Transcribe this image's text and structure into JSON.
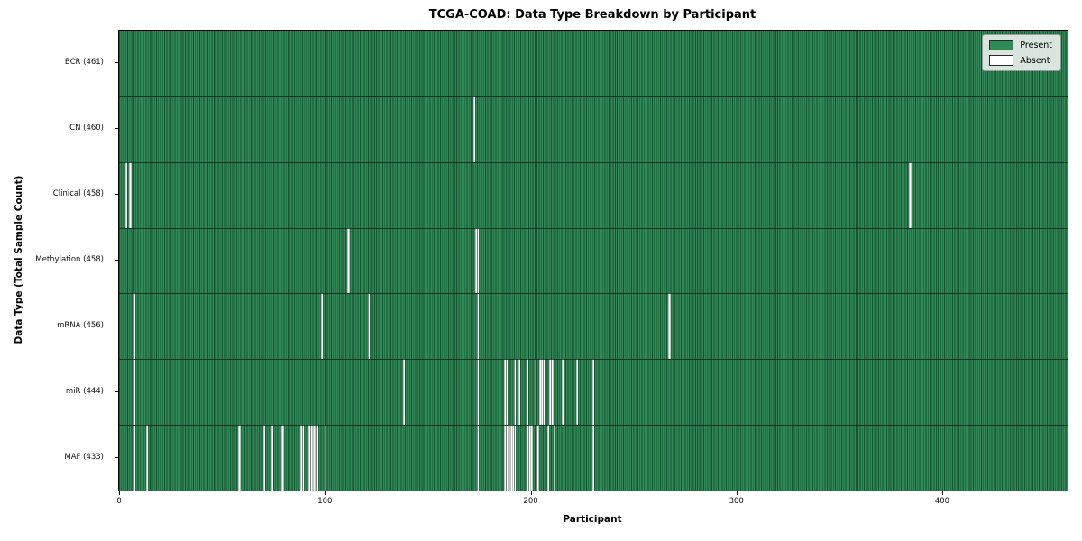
{
  "chart_data": {
    "type": "heatmap",
    "title": "TCGA-COAD: Data Type Breakdown by Participant",
    "xlabel": "Participant",
    "ylabel": "Data Type (Total Sample Count)",
    "n_participants": 461,
    "x_ticks": [
      0,
      100,
      200,
      300,
      400
    ],
    "legend": [
      {
        "label": "Present",
        "color": "#2e8b57"
      },
      {
        "label": "Absent",
        "color": "#ffffff"
      }
    ],
    "colors": {
      "present": "#2e8b57",
      "edge": "rgba(10,35,20,0.55)",
      "absent": "#ffffff"
    },
    "layout": {
      "grid": false,
      "legend_position": "upper right"
    },
    "rows": [
      {
        "label": "BCR (461)",
        "data_type": "BCR",
        "total": 461,
        "absent_participants": []
      },
      {
        "label": "CN (460)",
        "data_type": "CN",
        "total": 460,
        "absent_participants": [
          172
        ]
      },
      {
        "label": "Clinical (458)",
        "data_type": "Clinical",
        "total": 458,
        "absent_participants": [
          3,
          5,
          384
        ]
      },
      {
        "label": "Methylation (458)",
        "data_type": "Methylation",
        "total": 458,
        "absent_participants": [
          111,
          173,
          174
        ]
      },
      {
        "label": "mRNA (456)",
        "data_type": "mRNA",
        "total": 456,
        "absent_participants": [
          7,
          98,
          121,
          174,
          267
        ]
      },
      {
        "label": "miR (444)",
        "data_type": "miR",
        "total": 444,
        "absent_participants": [
          7,
          138,
          174,
          187,
          188,
          192,
          194,
          198,
          202,
          204,
          205,
          206,
          209,
          210,
          215,
          222,
          230
        ]
      },
      {
        "label": "MAF (433)",
        "data_type": "MAF",
        "total": 433,
        "absent_participants": [
          7,
          13,
          58,
          70,
          74,
          79,
          88,
          89,
          92,
          93,
          94,
          95,
          96,
          100,
          174,
          187,
          188,
          189,
          190,
          191,
          192,
          198,
          199,
          200,
          203,
          208,
          211,
          230
        ]
      }
    ]
  }
}
